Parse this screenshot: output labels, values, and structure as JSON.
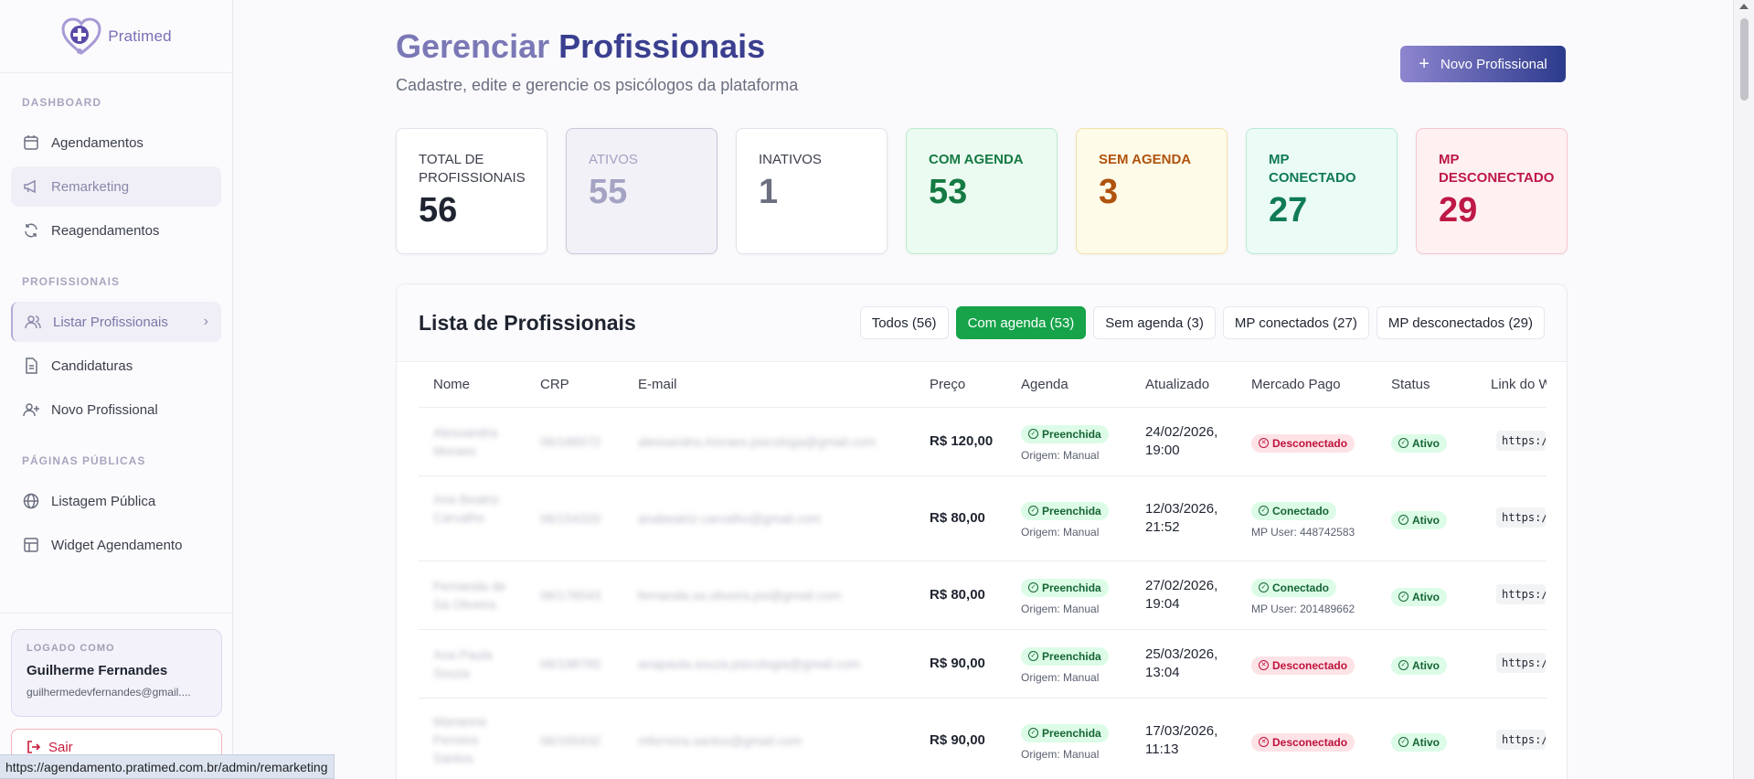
{
  "brand": {
    "name": "Pratimed"
  },
  "sidebar": {
    "sections": [
      {
        "label": "DASHBOARD",
        "items": [
          "Agendamentos",
          "Remarketing",
          "Reagendamentos"
        ]
      },
      {
        "label": "PROFISSIONAIS",
        "items": [
          "Listar Profissionais",
          "Candidaturas",
          "Novo Profissional"
        ]
      },
      {
        "label": "PÁGINAS PÚBLICAS",
        "items": [
          "Listagem Pública",
          "Widget Agendamento"
        ]
      }
    ],
    "user": {
      "label": "LOGADO COMO",
      "name": "Guilherme Fernandes",
      "email": "guilhermedevfernandes@gmail...."
    },
    "logout": "Sair"
  },
  "statusbar": "https://agendamento.pratimed.com.br/admin/remarketing",
  "header": {
    "title_part1": "Gerenciar",
    "title_part2": "Profissionais",
    "subtitle": "Cadastre, edite e gerencie os psicólogos da plataforma",
    "new_button": "Novo Profissional"
  },
  "stats": [
    {
      "label": "TOTAL DE PROFISSIONAIS",
      "value": "56"
    },
    {
      "label": "ATIVOS",
      "value": "55"
    },
    {
      "label": "INATIVOS",
      "value": "1"
    },
    {
      "label": "COM AGENDA",
      "value": "53"
    },
    {
      "label": "SEM AGENDA",
      "value": "3"
    },
    {
      "label": "MP CONECTADO",
      "value": "27"
    },
    {
      "label": "MP DESCONECTADO",
      "value": "29"
    }
  ],
  "list": {
    "title": "Lista de Profissionais",
    "filters": [
      "Todos (56)",
      "Com agenda (53)",
      "Sem agenda (3)",
      "MP conectados (27)",
      "MP desconectados (29)"
    ],
    "columns": [
      "Nome",
      "CRP",
      "E-mail",
      "Preço",
      "Agenda",
      "Atualizado",
      "Mercado Pago",
      "Status",
      "Link do W"
    ],
    "rows": [
      {
        "name": "Alessandra Moraes",
        "crp": "06/188572",
        "email": "alessandra.moraes.psicologa@gmail.com",
        "price": "R$ 120,00",
        "agenda": "Preenchida",
        "origin": "Origem: Manual",
        "date1": "24/02/2026,",
        "date2": "19:00",
        "mp": "Desconectado",
        "mp_user": "",
        "status": "Ativo",
        "link": "https://"
      },
      {
        "name": "Ana Beatriz Carvalho",
        "crp": "06/154320",
        "email": "anabeatriz.carvalho@gmail.com",
        "price": "R$ 80,00",
        "agenda": "Preenchida",
        "origin": "Origem: Manual",
        "date1": "12/03/2026,",
        "date2": "21:52",
        "mp": "Conectado",
        "mp_user": "MP User: 448742583",
        "status": "Ativo",
        "link": "https://"
      },
      {
        "name": "Fernanda de Sá Oliveira",
        "crp": "06/176543",
        "email": "fernanda.sa.oliveira.psi@gmail.com",
        "price": "R$ 80,00",
        "agenda": "Preenchida",
        "origin": "Origem: Manual",
        "date1": "27/02/2026,",
        "date2": "19:04",
        "mp": "Conectado",
        "mp_user": "MP User: 201489662",
        "status": "Ativo",
        "link": "https://"
      },
      {
        "name": "Ana Paula Souza",
        "crp": "06/198765",
        "email": "anapaula.souza.psicologia@gmail.com",
        "price": "R$ 90,00",
        "agenda": "Preenchida",
        "origin": "Origem: Manual",
        "date1": "25/03/2026,",
        "date2": "13:04",
        "mp": "Desconectado",
        "mp_user": "",
        "status": "Ativo",
        "link": "https://"
      },
      {
        "name": "Marianne Ferreira Santos",
        "crp": "06/165432",
        "email": "mferreira.santos@gmail.com",
        "price": "R$ 90,00",
        "agenda": "Preenchida",
        "origin": "Origem: Manual",
        "date1": "17/03/2026,",
        "date2": "11:13",
        "mp": "Desconectado",
        "mp_user": "",
        "status": "Ativo",
        "link": "https://"
      }
    ]
  }
}
